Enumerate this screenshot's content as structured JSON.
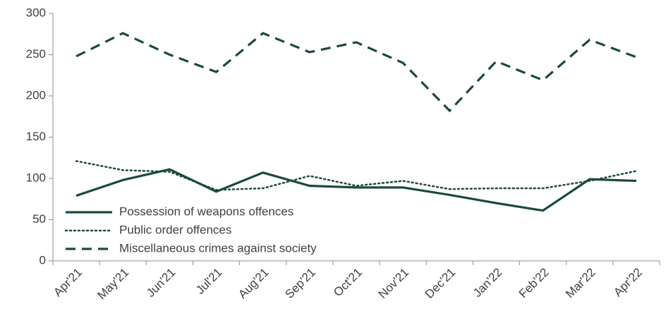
{
  "chart_data": {
    "type": "line",
    "categories": [
      "Apr'21",
      "May'21",
      "Jun'21",
      "Jul'21",
      "Aug'21",
      "Sep'21",
      "Oct'21",
      "Nov'21",
      "Dec'21",
      "Jan'22",
      "Feb'22",
      "Mar'22",
      "Apr'22"
    ],
    "series": [
      {
        "name": "Possession of weapons offences",
        "color": "#1b4a3c",
        "style": "solid",
        "values": [
          79,
          98,
          111,
          84,
          107,
          91,
          89,
          89,
          80,
          70,
          61,
          99,
          97
        ]
      },
      {
        "name": "Public order offences",
        "color": "#1b4a3c",
        "style": "dotted",
        "values": [
          121,
          110,
          108,
          86,
          88,
          103,
          91,
          97,
          87,
          88,
          88,
          97,
          109
        ]
      },
      {
        "name": "Miscellaneous crimes against society",
        "color": "#1b4a3c",
        "style": "dashed",
        "values": [
          248,
          276,
          250,
          229,
          276,
          253,
          265,
          240,
          182,
          242,
          219,
          268,
          247
        ]
      }
    ],
    "ylim": [
      0,
      300
    ],
    "yticks": [
      0,
      50,
      100,
      150,
      200,
      250,
      300
    ],
    "legend": "lower left"
  }
}
